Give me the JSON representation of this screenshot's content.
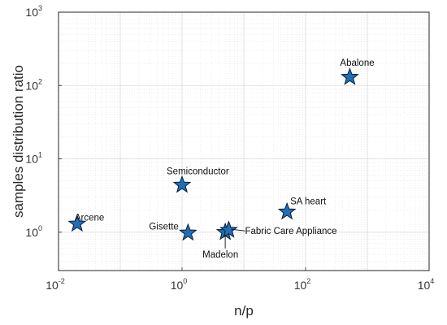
{
  "chart_data": {
    "type": "scatter",
    "xlabel": "n/p",
    "ylabel": "samples distribution ratio",
    "xscale": "log",
    "yscale": "log",
    "xlim": [
      0.01,
      10000
    ],
    "ylim": [
      0.3,
      1000
    ],
    "grid": true,
    "minor_grid": true,
    "xticks": [
      {
        "base": "10",
        "exp": "-2",
        "value": 0.01
      },
      {
        "base": "10",
        "exp": "0",
        "value": 1
      },
      {
        "base": "10",
        "exp": "2",
        "value": 100
      },
      {
        "base": "10",
        "exp": "4",
        "value": 10000
      }
    ],
    "yticks": [
      {
        "base": "10",
        "exp": "0",
        "value": 1
      },
      {
        "base": "10",
        "exp": "1",
        "value": 10
      },
      {
        "base": "10",
        "exp": "2",
        "value": 100
      },
      {
        "base": "10",
        "exp": "3",
        "value": 1000
      }
    ],
    "marker": "star",
    "marker_color": "#1f6fb5",
    "marker_edge_color": "#0a1e3c",
    "points": [
      {
        "label": "Arcene",
        "x": 0.02,
        "y": 1.3
      },
      {
        "label": "Semiconductor",
        "x": 1.0,
        "y": 4.4
      },
      {
        "label": "Gisette",
        "x": 1.25,
        "y": 0.98
      },
      {
        "label": "Madelon",
        "x": 5.0,
        "y": 1.0
      },
      {
        "label": "Fabric Care Appliance",
        "x": 5.7,
        "y": 1.07
      },
      {
        "label": "SA heart",
        "x": 50,
        "y": 1.9
      },
      {
        "label": "Abalone",
        "x": 520,
        "y": 130
      }
    ]
  }
}
